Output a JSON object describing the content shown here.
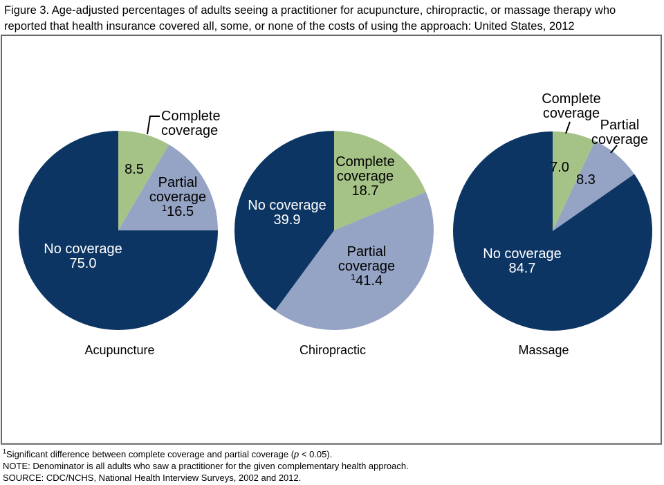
{
  "header": {
    "title_lines": [
      "Figure 3. Age-adjusted percentages of adults seeing a practitioner for acupuncture, chiropractic, or massage therapy who",
      "reported that health insurance covered all, some, or none of the costs of using the approach: United States, 2012"
    ]
  },
  "chart_data": {
    "type": "pie",
    "title": "Figure 3. Age-adjusted percentages of adults seeing a practitioner for acupuncture, chiropractic, or massage therapy who reported that health insurance covered all, some, or none of the costs of using the approach: United States, 2012",
    "unit": "percent",
    "segment_colors": {
      "complete_coverage": "#a5c287",
      "partial_coverage": "#95a3c4",
      "no_coverage": "#0c3563"
    },
    "pies": [
      {
        "label": "Acupuncture",
        "slices": [
          {
            "name": "Complete coverage",
            "value": 8.5,
            "significance_marker": false
          },
          {
            "name": "Partial coverage",
            "value": 16.5,
            "significance_marker": true
          },
          {
            "name": "No coverage",
            "value": 75.0,
            "significance_marker": false
          }
        ]
      },
      {
        "label": "Chiropractic",
        "slices": [
          {
            "name": "Complete coverage",
            "value": 18.7,
            "significance_marker": false
          },
          {
            "name": "Partial coverage",
            "value": 41.4,
            "significance_marker": true
          },
          {
            "name": "No coverage",
            "value": 39.9,
            "significance_marker": false
          }
        ]
      },
      {
        "label": "Massage",
        "slices": [
          {
            "name": "Complete coverage",
            "value": 7.0,
            "significance_marker": false
          },
          {
            "name": "Partial coverage",
            "value": 8.3,
            "significance_marker": false
          },
          {
            "name": "No coverage",
            "value": 84.7,
            "significance_marker": false
          }
        ]
      }
    ]
  },
  "footnotes": {
    "sig": {
      "sup": "1",
      "before": "Significant difference between complete coverage and partial coverage (",
      "italic": "p",
      "after": " < 0.05)."
    },
    "note": "NOTE: Denominator is all adults who saw a practitioner for the given complementary health approach.",
    "source": "SOURCE: CDC/NCHS, National Health Interview Surveys, 2002 and 2012."
  }
}
